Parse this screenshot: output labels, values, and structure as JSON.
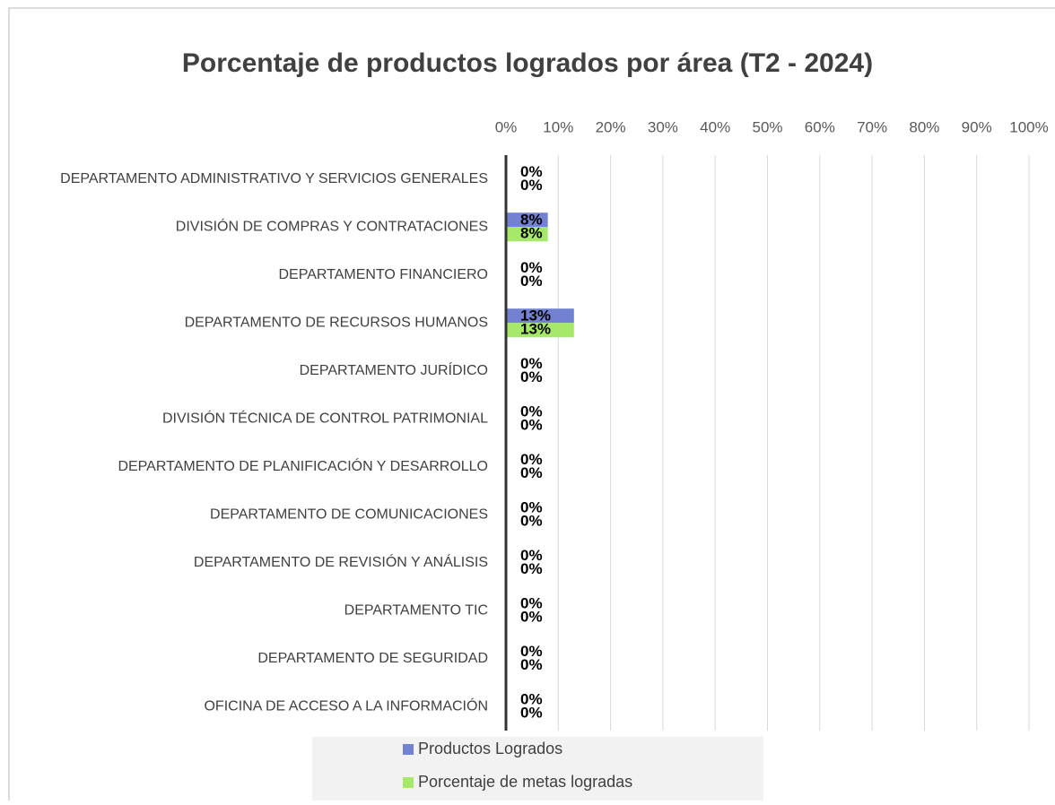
{
  "chart_data": {
    "type": "bar",
    "orientation": "horizontal",
    "title": "Porcentaje de productos logrados por área (T2 - 2024)",
    "categories": [
      "DEPARTAMENTO ADMINISTRATIVO Y SERVICIOS GENERALES",
      "DIVISIÓN DE COMPRAS Y CONTRATACIONES",
      "DEPARTAMENTO FINANCIERO",
      "DEPARTAMENTO DE RECURSOS HUMANOS",
      "DEPARTAMENTO JURÍDICO",
      "DIVISIÓN TÉCNICA DE CONTROL PATRIMONIAL",
      "DEPARTAMENTO DE PLANIFICACIÓN Y DESARROLLO",
      "DEPARTAMENTO DE COMUNICACIONES",
      "DEPARTAMENTO DE REVISIÓN Y ANÁLISIS",
      "DEPARTAMENTO TIC",
      "DEPARTAMENTO DE SEGURIDAD",
      "OFICINA DE ACCESO A LA INFORMACIÓN"
    ],
    "series": [
      {
        "name": "Productos Logrados",
        "color": "#7282d0",
        "values": [
          0,
          8,
          0,
          13,
          0,
          0,
          0,
          0,
          0,
          0,
          0,
          0
        ],
        "value_labels": [
          "0%",
          "8%",
          "0%",
          "13%",
          "0%",
          "0%",
          "0%",
          "0%",
          "0%",
          "0%",
          "0%",
          "0%"
        ]
      },
      {
        "name": "Porcentaje de metas logradas",
        "color": "#a6e86a",
        "values": [
          0,
          8,
          0,
          13,
          0,
          0,
          0,
          0,
          0,
          0,
          0,
          0
        ],
        "value_labels": [
          "0%",
          "8%",
          "0%",
          "13%",
          "0%",
          "0%",
          "0%",
          "0%",
          "0%",
          "0%",
          "0%",
          "0%"
        ]
      }
    ],
    "xlim": [
      0,
      100
    ],
    "xticks": [
      {
        "value": 0,
        "label": "0%"
      },
      {
        "value": 10,
        "label": "10%"
      },
      {
        "value": 20,
        "label": "20%"
      },
      {
        "value": 30,
        "label": "30%"
      },
      {
        "value": 40,
        "label": "40%"
      },
      {
        "value": 50,
        "label": "50%"
      },
      {
        "value": 60,
        "label": "60%"
      },
      {
        "value": 70,
        "label": "70%"
      },
      {
        "value": 80,
        "label": "80%"
      },
      {
        "value": 90,
        "label": "90%"
      },
      {
        "value": 100,
        "label": "100%"
      }
    ],
    "grid": true,
    "legend": "bottom"
  }
}
